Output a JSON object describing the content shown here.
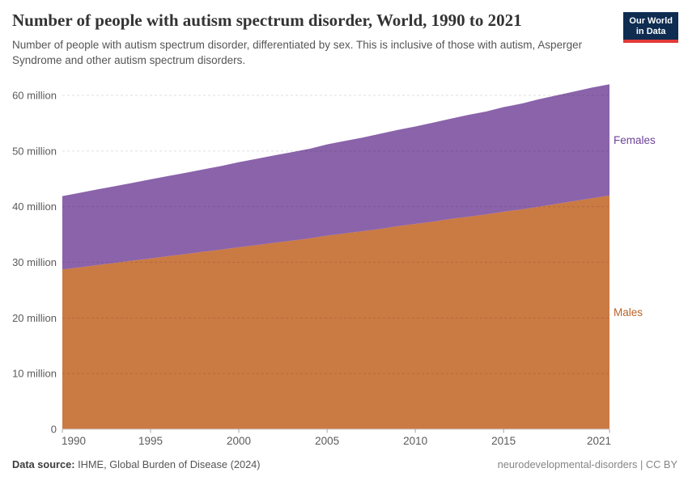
{
  "header": {
    "title": "Number of people with autism spectrum disorder, World, 1990 to 2021",
    "subtitle": "Number of people with autism spectrum disorder, differentiated by sex. This is inclusive of those with autism, Asperger Syndrome and other autism spectrum disorders.",
    "logo": {
      "line1": "Our World",
      "line2": "in Data",
      "bg_color": "#0e2d51",
      "stripe_color": "#e23a38",
      "text_color": "#ffffff"
    }
  },
  "footer": {
    "source_label": "Data source:",
    "source_text": " IHME, Global Burden of Disease (2024)",
    "license_text": "neurodevelopmental-disorders | CC BY"
  },
  "chart_data": {
    "type": "area",
    "stacked": true,
    "title": "Number of people with autism spectrum disorder, World, 1990 to 2021",
    "unit": "million people",
    "grid": "horizontal dashed",
    "legend_position": "right-of-area-labels",
    "x": [
      1990,
      1991,
      1992,
      1993,
      1994,
      1995,
      1996,
      1997,
      1998,
      1999,
      2000,
      2001,
      2002,
      2003,
      2004,
      2005,
      2006,
      2007,
      2008,
      2009,
      2010,
      2011,
      2012,
      2013,
      2014,
      2015,
      2016,
      2017,
      2018,
      2019,
      2020,
      2021
    ],
    "series": [
      {
        "name": "Males",
        "color": "#ca7a43",
        "label_color": "#b86229",
        "values": [
          28.7,
          29.1,
          29.5,
          29.9,
          30.3,
          30.7,
          31.1,
          31.5,
          31.9,
          32.3,
          32.7,
          33.1,
          33.5,
          33.9,
          34.3,
          34.8,
          35.2,
          35.6,
          36.0,
          36.5,
          36.9,
          37.3,
          37.8,
          38.2,
          38.6,
          39.1,
          39.5,
          40.0,
          40.5,
          41.0,
          41.5,
          42.0
        ]
      },
      {
        "name": "Females",
        "color": "#8a63aa",
        "label_color": "#6d4397",
        "values": [
          13.2,
          13.4,
          13.6,
          13.8,
          14.0,
          14.2,
          14.4,
          14.6,
          14.8,
          15.0,
          15.3,
          15.5,
          15.7,
          15.9,
          16.1,
          16.4,
          16.6,
          16.8,
          17.1,
          17.3,
          17.5,
          17.8,
          18.0,
          18.3,
          18.5,
          18.8,
          19.0,
          19.3,
          19.5,
          19.7,
          19.9,
          20.0
        ]
      }
    ],
    "ylim": [
      0,
      62
    ],
    "yticks": [
      {
        "value": 0,
        "label": "0"
      },
      {
        "value": 10,
        "label": "10 million"
      },
      {
        "value": 20,
        "label": "20 million"
      },
      {
        "value": 30,
        "label": "30 million"
      },
      {
        "value": 40,
        "label": "40 million"
      },
      {
        "value": 50,
        "label": "50 million"
      },
      {
        "value": 60,
        "label": "60 million"
      }
    ],
    "xticks": [
      1990,
      1995,
      2000,
      2005,
      2010,
      2015,
      2021
    ]
  }
}
